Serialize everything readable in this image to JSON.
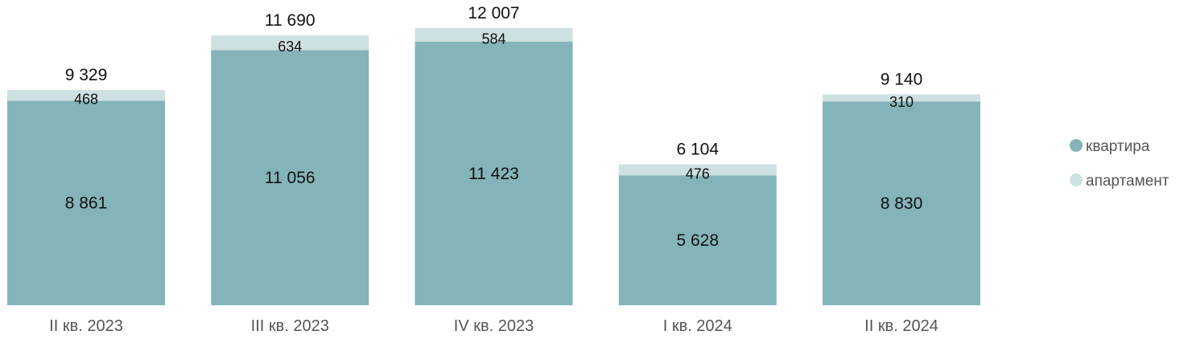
{
  "chart_data": {
    "type": "bar",
    "stacked": true,
    "categories": [
      "II кв. 2023",
      "III кв. 2023",
      "IV кв. 2023",
      "I кв. 2024",
      "II кв. 2024"
    ],
    "series": [
      {
        "name": "квартира",
        "color": "#84b4b9",
        "values": [
          8861,
          11056,
          11423,
          5628,
          8830
        ],
        "labels": [
          "8 861",
          "11 056",
          "11 423",
          "5 628",
          "8 830"
        ]
      },
      {
        "name": "апартамент",
        "color": "#cde0e2",
        "values": [
          468,
          634,
          584,
          476,
          310
        ],
        "labels": [
          "468",
          "634",
          "584",
          "476",
          "310"
        ]
      }
    ],
    "totals": [
      9329,
      11690,
      12007,
      6104,
      9140
    ],
    "total_labels": [
      "9 329",
      "11 690",
      "12 007",
      "6 104",
      "9 140"
    ],
    "ylim": [
      0,
      12400
    ],
    "grid": false,
    "legend_position": "right"
  }
}
